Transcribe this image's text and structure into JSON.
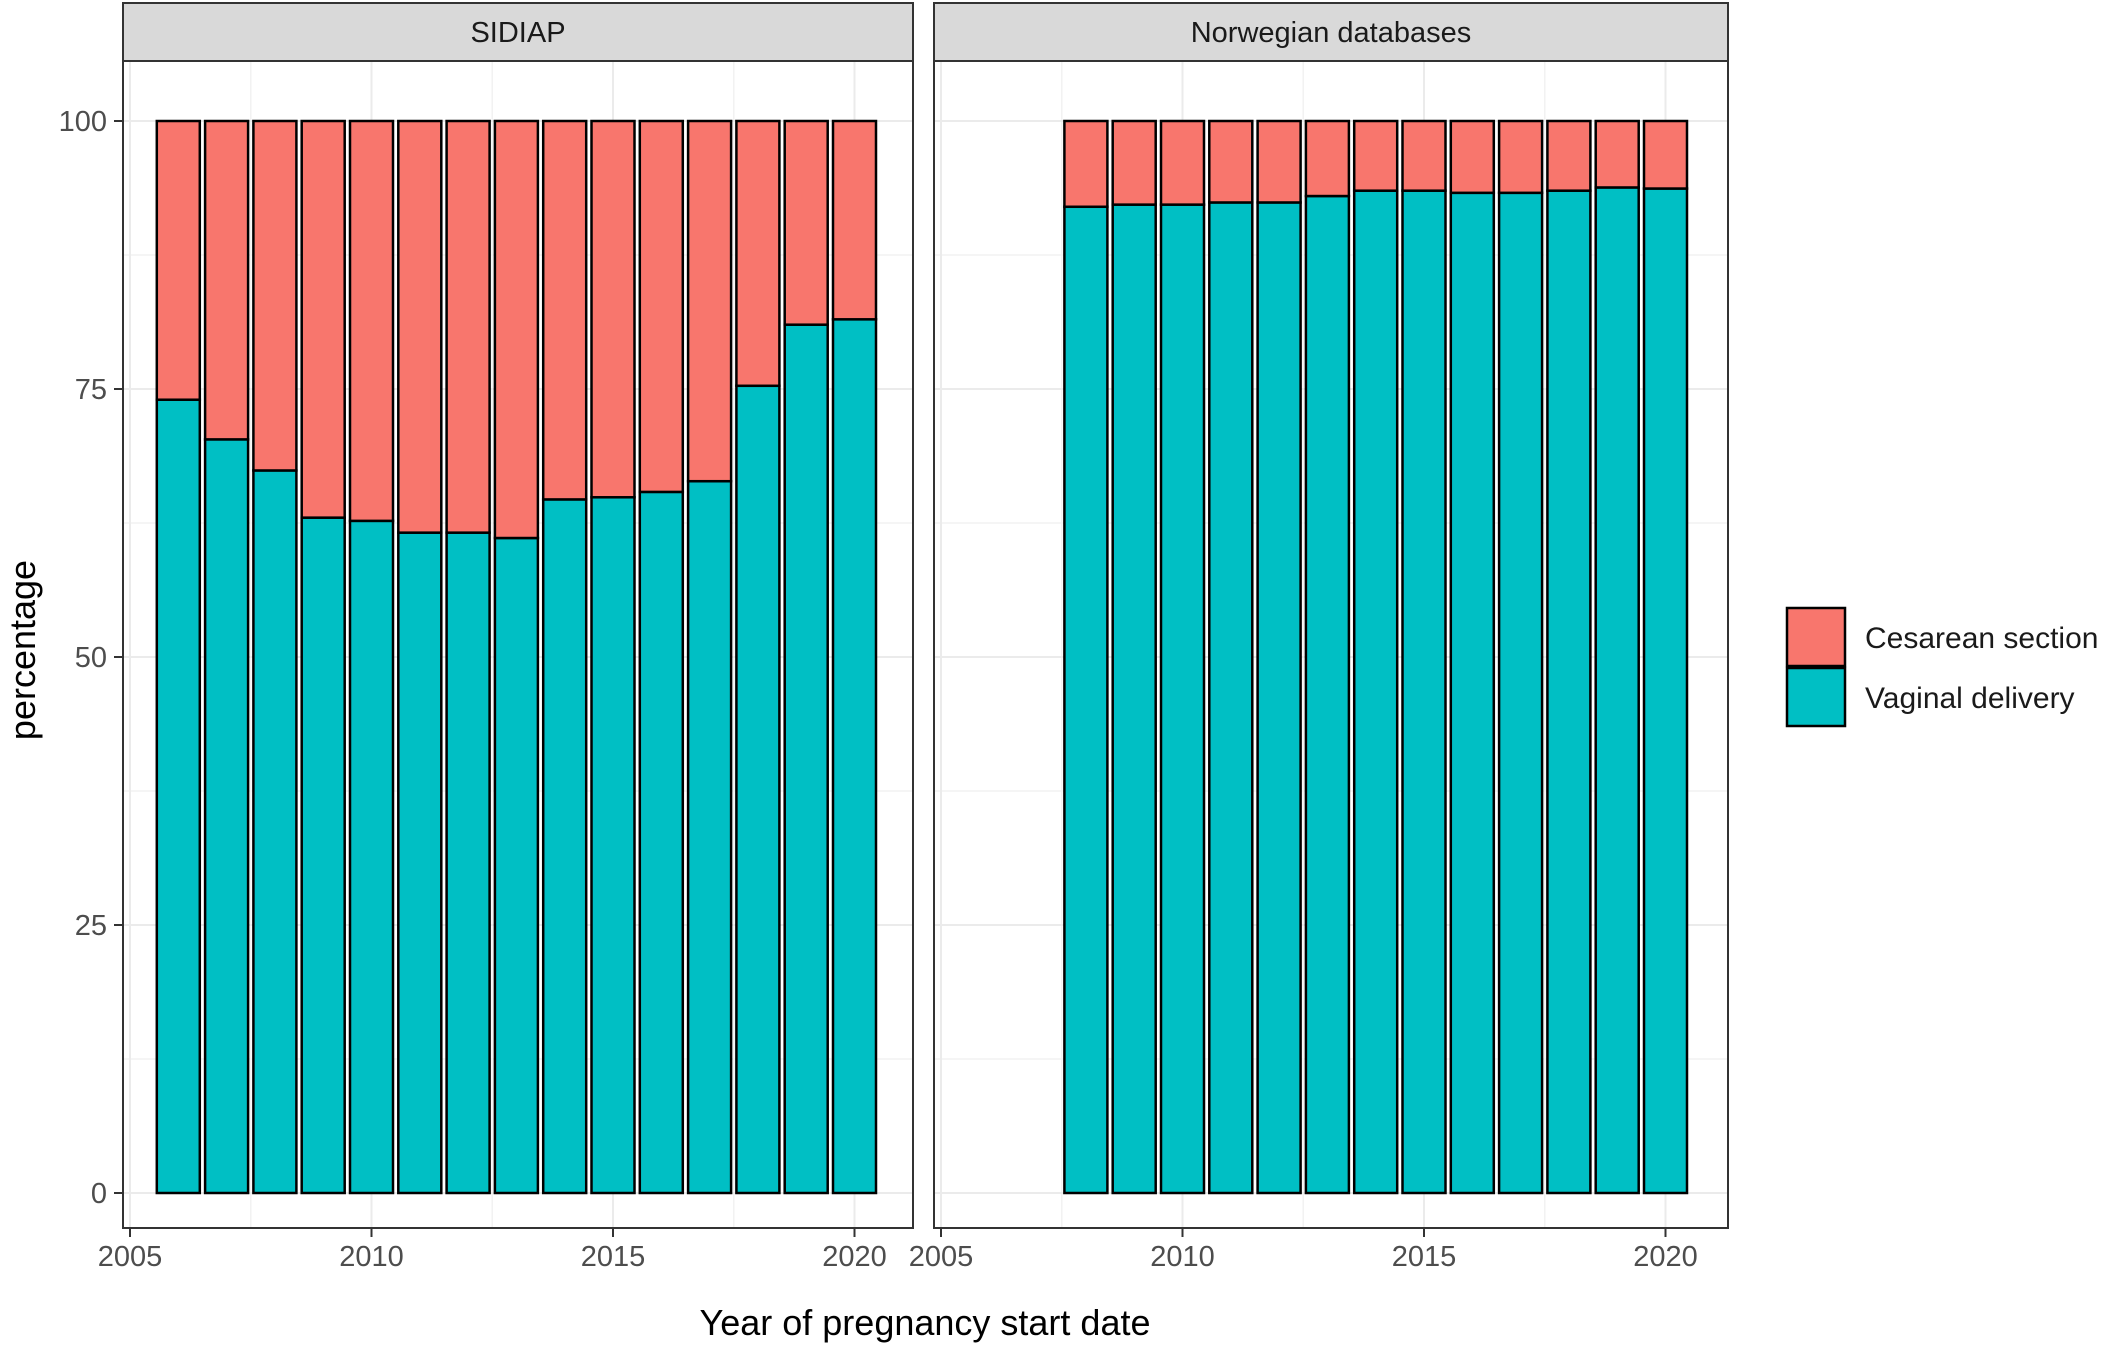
{
  "chart_data": {
    "type": "bar",
    "stacked": true,
    "y_axis_label": "percentage",
    "x_axis_label": "Year of pregnancy start date",
    "ylim": [
      0,
      100
    ],
    "y_ticks": [
      0,
      25,
      50,
      75,
      100
    ],
    "x_ticks": [
      2005,
      2010,
      2015,
      2020
    ],
    "xlim": [
      2005,
      2021
    ],
    "grid": true,
    "legend_position": "right",
    "legend": [
      {
        "name": "Cesarean section",
        "color": "#F8766D"
      },
      {
        "name": "Vaginal delivery",
        "color": "#00BFC4"
      }
    ],
    "panels": [
      {
        "strip_label": "SIDIAP",
        "years": [
          2006,
          2007,
          2008,
          2009,
          2010,
          2011,
          2012,
          2013,
          2014,
          2015,
          2016,
          2017,
          2018,
          2019,
          2020
        ],
        "series": [
          {
            "name": "Vaginal delivery",
            "values": [
              74.0,
              70.3,
              67.4,
              63.0,
              62.7,
              61.6,
              61.6,
              61.1,
              64.7,
              64.9,
              65.4,
              66.4,
              75.3,
              81.0,
              81.5
            ]
          },
          {
            "name": "Cesarean section",
            "values": [
              26.0,
              29.7,
              32.6,
              37.0,
              37.3,
              38.4,
              38.4,
              38.9,
              35.3,
              35.1,
              34.6,
              33.6,
              24.7,
              19.0,
              18.5
            ]
          }
        ]
      },
      {
        "strip_label": "Norwegian databases",
        "years": [
          2008,
          2009,
          2010,
          2011,
          2012,
          2013,
          2014,
          2015,
          2016,
          2017,
          2018,
          2019,
          2020
        ],
        "series": [
          {
            "name": "Vaginal delivery",
            "values": [
              92.0,
              92.2,
              92.2,
              92.4,
              92.4,
              93.0,
              93.5,
              93.5,
              93.3,
              93.3,
              93.5,
              93.8,
              93.7
            ]
          },
          {
            "name": "Cesarean section",
            "values": [
              8.0,
              7.8,
              7.8,
              7.6,
              7.6,
              7.0,
              6.5,
              6.5,
              6.7,
              6.7,
              6.5,
              6.2,
              6.3
            ]
          }
        ]
      }
    ]
  }
}
